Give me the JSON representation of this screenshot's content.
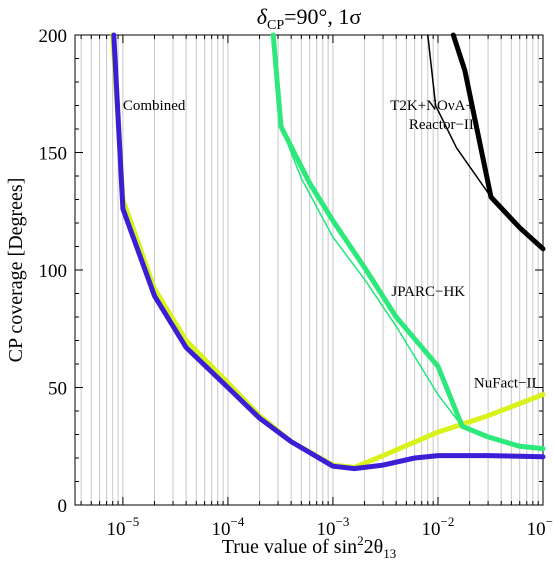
{
  "chart_data": {
    "type": "line",
    "title": {
      "symbol": "δ",
      "subscript": "CP",
      "rest": "=90°, 1σ"
    },
    "xlabel": {
      "prefix": "True value of sin",
      "superscript": "2",
      "middle": "2θ",
      "subscript": "13"
    },
    "ylabel": "CP coverage [Degrees]",
    "x_scale": "log",
    "xlim": [
      3.5e-06,
      0.1
    ],
    "ylim": [
      0,
      200
    ],
    "x_ticks": [
      {
        "value": 1e-05,
        "base": "10",
        "exp": "−5"
      },
      {
        "value": 0.0001,
        "base": "10",
        "exp": "−4"
      },
      {
        "value": 0.001,
        "base": "10",
        "exp": "−3"
      },
      {
        "value": 0.01,
        "base": "10",
        "exp": "−2"
      },
      {
        "value": 0.1,
        "base": "10",
        "exp": "−1"
      }
    ],
    "y_ticks": [
      "0",
      "50",
      "100",
      "150",
      "200"
    ],
    "grid": "vertical minor log gridlines",
    "series": [
      {
        "key": "nufact",
        "color": "#d9f21c",
        "width": 5,
        "points": [
          [
            8e-06,
            200
          ],
          [
            1e-05,
            130
          ],
          [
            2e-05,
            92
          ],
          [
            4e-05,
            70
          ],
          [
            0.0001,
            52
          ],
          [
            0.0002,
            38
          ],
          [
            0.0004,
            27
          ],
          [
            0.001,
            17
          ],
          [
            0.0016,
            16
          ],
          [
            0.003,
            21
          ],
          [
            0.01,
            31
          ],
          [
            0.03,
            38
          ],
          [
            0.1,
            47
          ]
        ]
      },
      {
        "key": "combined",
        "color": "#3a1fd6",
        "width": 5,
        "points": [
          [
            8.2e-06,
            200
          ],
          [
            1e-05,
            126
          ],
          [
            2e-05,
            89
          ],
          [
            4e-05,
            67
          ],
          [
            0.0001,
            50
          ],
          [
            0.0002,
            37
          ],
          [
            0.0004,
            27
          ],
          [
            0.001,
            16.5
          ],
          [
            0.0016,
            15.5
          ],
          [
            0.003,
            17
          ],
          [
            0.006,
            20
          ],
          [
            0.01,
            21
          ],
          [
            0.03,
            21
          ],
          [
            0.1,
            20.5
          ]
        ]
      },
      {
        "key": "jparc-thin",
        "color": "#1ee87a",
        "width": 1.5,
        "points": [
          [
            0.00032,
            161
          ],
          [
            0.0005,
            139
          ],
          [
            0.001,
            114
          ],
          [
            0.002,
            96
          ],
          [
            0.004,
            76
          ],
          [
            0.01,
            47
          ],
          [
            0.017,
            33.5
          ]
        ]
      },
      {
        "key": "jparc",
        "color": "#2de87a",
        "width": 5,
        "points": [
          [
            0.00027,
            200
          ],
          [
            0.00032,
            161
          ],
          [
            0.0006,
            137
          ],
          [
            0.001,
            121
          ],
          [
            0.002,
            101
          ],
          [
            0.004,
            80
          ],
          [
            0.01,
            59
          ],
          [
            0.017,
            33.5
          ],
          [
            0.03,
            29
          ],
          [
            0.06,
            25
          ],
          [
            0.1,
            24
          ]
        ]
      },
      {
        "key": "t2k-thin",
        "color": "#000000",
        "width": 1.5,
        "points": [
          [
            0.008,
            200
          ],
          [
            0.0095,
            170
          ],
          [
            0.015,
            152
          ],
          [
            0.032,
            131
          ]
        ]
      },
      {
        "key": "t2k",
        "color": "#000000",
        "width": 5,
        "points": [
          [
            0.014,
            200
          ],
          [
            0.018,
            185
          ],
          [
            0.032,
            131
          ],
          [
            0.06,
            118
          ],
          [
            0.1,
            109
          ]
        ]
      }
    ],
    "labels": [
      {
        "key": "combined",
        "lines": [
          "Combined"
        ],
        "at": [
          1e-05,
          168
        ],
        "anchor": "start"
      },
      {
        "key": "t2k",
        "lines": [
          "T2K+NOνA+",
          "Reactor−II"
        ],
        "at": [
          0.022,
          168
        ],
        "anchor": "end"
      },
      {
        "key": "jparc",
        "lines": [
          "JPARC−HK"
        ],
        "at": [
          0.0036,
          89
        ],
        "anchor": "start"
      },
      {
        "key": "nufact",
        "lines": [
          "NuFact−II"
        ],
        "at": [
          0.022,
          50
        ],
        "anchor": "start"
      }
    ]
  }
}
